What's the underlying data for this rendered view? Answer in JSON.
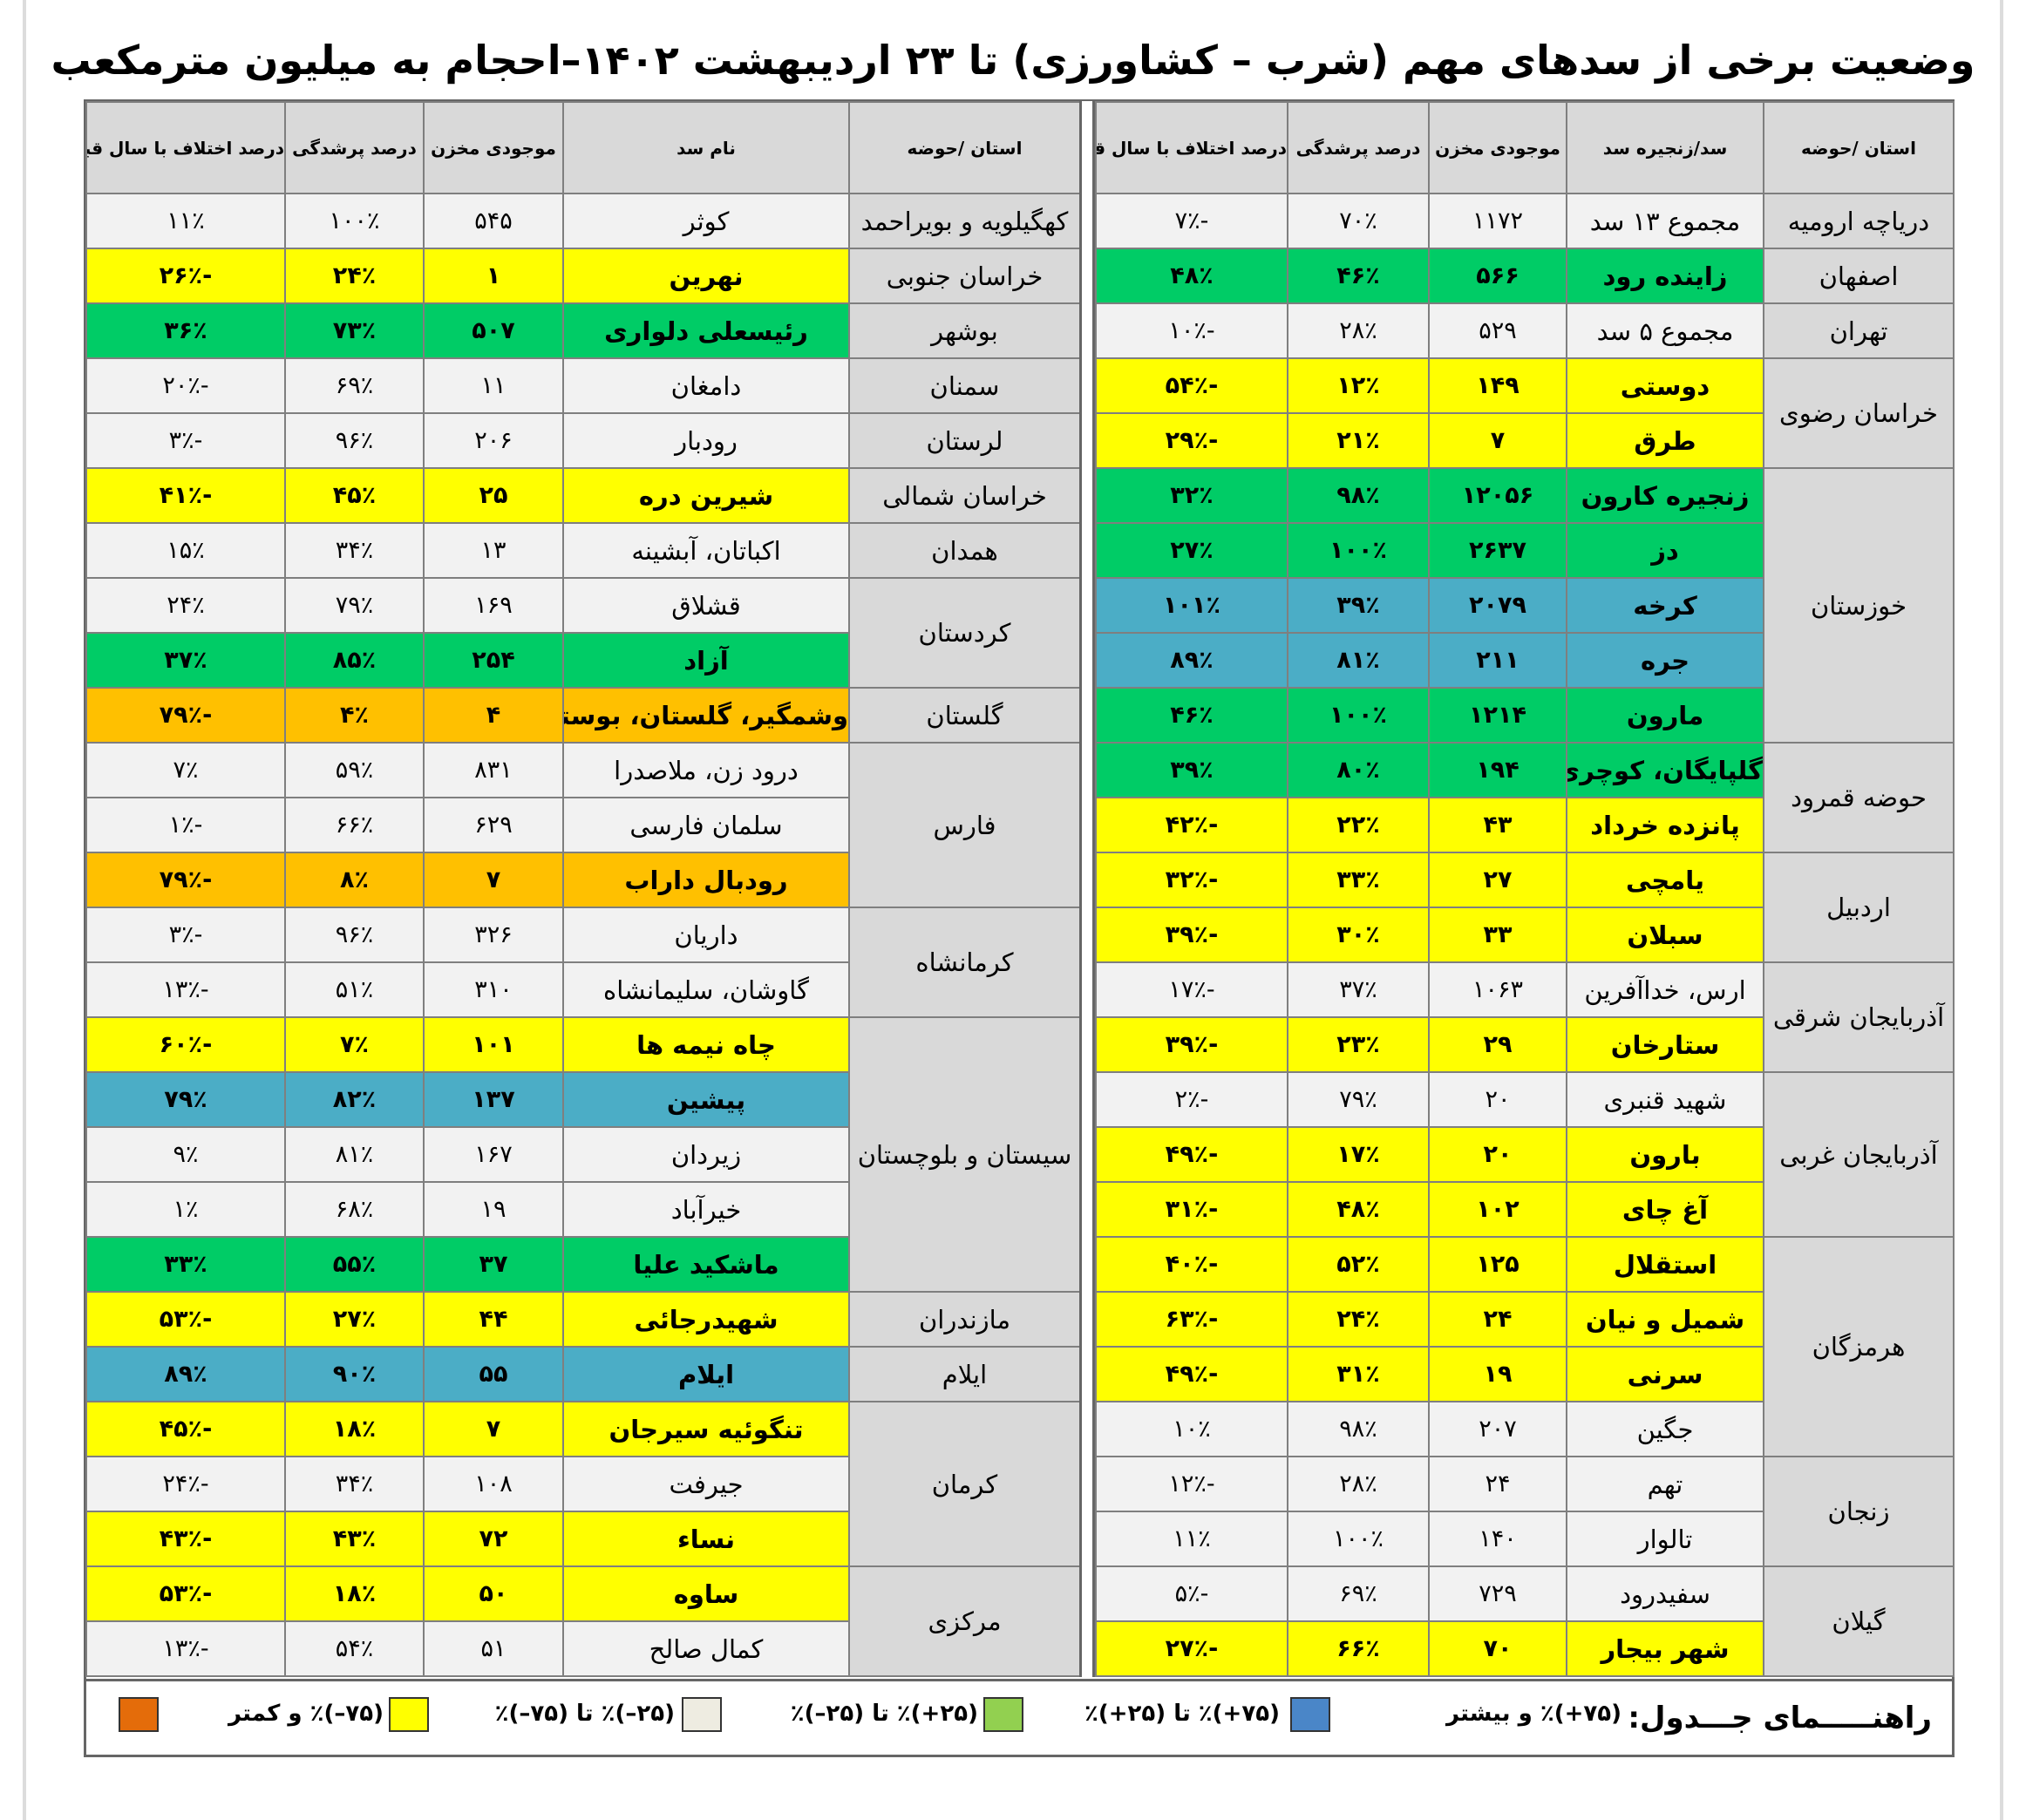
{
  "title": "وضعیت برخی از سدهای مهم (شرب – کشاورزی) تا ۲۳ اردیبهشت ۱۴۰۲–احجام به میلیون مترمکعب",
  "colors": {
    "gray": "#f2f2f2",
    "yellow": "#ffff00",
    "green": "#00cc66",
    "blue": "#4badc6",
    "orange": "#ffc000",
    "header": "#d9d9d9"
  },
  "right_table": {
    "headers": [
      "استان /حوضه",
      "سد/زنجیره سد",
      "موجودی مخزن",
      "درصد پرشدگی",
      "درصد اختلاف با سال قبل"
    ],
    "rows": [
      {
        "province": "دریاچه ارومیه",
        "span": 1,
        "dam": "مجموع ۱۳ سد",
        "storage": "۱۱۷۲",
        "fill": "۷۰٪",
        "diff": "-۷٪",
        "color": "gray"
      },
      {
        "province": "اصفهان",
        "span": 1,
        "dam": "زاینده رود",
        "storage": "۵۶۶",
        "fill": "۴۶٪",
        "diff": "۴۸٪",
        "color": "green"
      },
      {
        "province": "تهران",
        "span": 1,
        "dam": "مجموع ۵ سد",
        "storage": "۵۲۹",
        "fill": "۲۸٪",
        "diff": "-۱۰٪",
        "color": "gray"
      },
      {
        "province": "خراسان رضوی",
        "span": 2,
        "dam": "دوستی",
        "storage": "۱۴۹",
        "fill": "۱۲٪",
        "diff": "-۵۴٪",
        "color": "yellow"
      },
      {
        "province": null,
        "dam": "طرق",
        "storage": "۷",
        "fill": "۲۱٪",
        "diff": "-۲۹٪",
        "color": "yellow"
      },
      {
        "province": "خوزستان",
        "span": 5,
        "dam": "زنجیره کارون",
        "storage": "۱۲۰۵۶",
        "fill": "۹۸٪",
        "diff": "۳۲٪",
        "color": "green"
      },
      {
        "province": null,
        "dam": "دز",
        "storage": "۲۶۳۷",
        "fill": "۱۰۰٪",
        "diff": "۲۷٪",
        "color": "green"
      },
      {
        "province": null,
        "dam": "کرخه",
        "storage": "۲۰۷۹",
        "fill": "۳۹٪",
        "diff": "۱۰۱٪",
        "color": "blue"
      },
      {
        "province": null,
        "dam": "جره",
        "storage": "۲۱۱",
        "fill": "۸۱٪",
        "diff": "۸۹٪",
        "color": "blue"
      },
      {
        "province": null,
        "dam": "مارون",
        "storage": "۱۲۱۴",
        "fill": "۱۰۰٪",
        "diff": "۴۶٪",
        "color": "green"
      },
      {
        "province": "حوضه قمرود",
        "span": 2,
        "dam": "گلپایگان، کوچری",
        "storage": "۱۹۴",
        "fill": "۸۰٪",
        "diff": "۳۹٪",
        "color": "green"
      },
      {
        "province": null,
        "dam": "پانزده خرداد",
        "storage": "۴۳",
        "fill": "۲۲٪",
        "diff": "-۴۲٪",
        "color": "yellow"
      },
      {
        "province": "اردبیل",
        "span": 2,
        "dam": "یامچی",
        "storage": "۲۷",
        "fill": "۳۳٪",
        "diff": "-۳۲٪",
        "color": "yellow"
      },
      {
        "province": null,
        "dam": "سبلان",
        "storage": "۳۳",
        "fill": "۳۰٪",
        "diff": "-۳۹٪",
        "color": "yellow"
      },
      {
        "province": "آذربایجان شرقی",
        "span": 2,
        "dam": "ارس، خداآفرین",
        "storage": "۱۰۶۳",
        "fill": "۳۷٪",
        "diff": "-۱۷٪",
        "color": "gray"
      },
      {
        "province": null,
        "dam": "ستارخان",
        "storage": "۲۹",
        "fill": "۲۳٪",
        "diff": "-۳۹٪",
        "color": "yellow"
      },
      {
        "province": "آذربایجان غربی",
        "span": 3,
        "dam": "شهید قنبری",
        "storage": "۲۰",
        "fill": "۷۹٪",
        "diff": "-۲٪",
        "color": "gray"
      },
      {
        "province": null,
        "dam": "بارون",
        "storage": "۲۰",
        "fill": "۱۷٪",
        "diff": "-۴۹٪",
        "color": "yellow"
      },
      {
        "province": null,
        "dam": "آغ چای",
        "storage": "۱۰۲",
        "fill": "۴۸٪",
        "diff": "-۳۱٪",
        "color": "yellow"
      },
      {
        "province": "هرمزگان",
        "span": 4,
        "dam": "استقلال",
        "storage": "۱۲۵",
        "fill": "۵۲٪",
        "diff": "-۴۰٪",
        "color": "yellow"
      },
      {
        "province": null,
        "dam": "شمیل و نیان",
        "storage": "۲۴",
        "fill": "۲۴٪",
        "diff": "-۶۳٪",
        "color": "yellow"
      },
      {
        "province": null,
        "dam": "سرنی",
        "storage": "۱۹",
        "fill": "۳۱٪",
        "diff": "-۴۹٪",
        "color": "yellow"
      },
      {
        "province": null,
        "dam": "جگین",
        "storage": "۲۰۷",
        "fill": "۹۸٪",
        "diff": "۱۰٪",
        "color": "gray"
      },
      {
        "province": "زنجان",
        "span": 2,
        "dam": "تهم",
        "storage": "۲۴",
        "fill": "۲۸٪",
        "diff": "-۱۲٪",
        "color": "gray"
      },
      {
        "province": null,
        "dam": "تالوار",
        "storage": "۱۴۰",
        "fill": "۱۰۰٪",
        "diff": "۱۱٪",
        "color": "gray"
      },
      {
        "province": "گیلان",
        "span": 2,
        "dam": "سفیدرود",
        "storage": "۷۲۹",
        "fill": "۶۹٪",
        "diff": "-۵٪",
        "color": "gray"
      },
      {
        "province": null,
        "dam": "شهر بیجار",
        "storage": "۷۰",
        "fill": "۶۶٪",
        "diff": "-۲۷٪",
        "color": "yellow"
      }
    ]
  },
  "left_table": {
    "headers": [
      "استان /حوضه",
      "نام سد",
      "موجودی مخزن",
      "درصد پرشدگی",
      "درصد اختلاف با سال قبل"
    ],
    "rows": [
      {
        "province": "کهگیلویه و بویراحمد",
        "span": 1,
        "dam": "کوثر",
        "storage": "۵۴۵",
        "fill": "۱۰۰٪",
        "diff": "۱۱٪",
        "color": "gray"
      },
      {
        "province": "خراسان جنوبی",
        "span": 1,
        "dam": "نهرین",
        "storage": "۱",
        "fill": "۲۴٪",
        "diff": "-۲۶٪",
        "color": "yellow"
      },
      {
        "province": "بوشهر",
        "span": 1,
        "dam": "رئیسعلی دلواری",
        "storage": "۵۰۷",
        "fill": "۷۳٪",
        "diff": "۳۶٪",
        "color": "green"
      },
      {
        "province": "سمنان",
        "span": 1,
        "dam": "دامغان",
        "storage": "۱۱",
        "fill": "۶۹٪",
        "diff": "-۲۰٪",
        "color": "gray"
      },
      {
        "province": "لرستان",
        "span": 1,
        "dam": "رودبار",
        "storage": "۲۰۶",
        "fill": "۹۶٪",
        "diff": "-۳٪",
        "color": "gray"
      },
      {
        "province": "خراسان شمالی",
        "span": 1,
        "dam": "شیرین دره",
        "storage": "۲۵",
        "fill": "۴۵٪",
        "diff": "-۴۱٪",
        "color": "yellow"
      },
      {
        "province": "همدان",
        "span": 1,
        "dam": "اکباتان، آبشینه",
        "storage": "۱۳",
        "fill": "۳۴٪",
        "diff": "۱۵٪",
        "color": "gray"
      },
      {
        "province": "کردستان",
        "span": 2,
        "dam": "قشلاق",
        "storage": "۱۶۹",
        "fill": "۷۹٪",
        "diff": "۲۴٪",
        "color": "gray"
      },
      {
        "province": null,
        "dam": "آزاد",
        "storage": "۲۵۴",
        "fill": "۸۵٪",
        "diff": "۳۷٪",
        "color": "green"
      },
      {
        "province": "گلستان",
        "span": 1,
        "dam": "وشمگیر، گلستان، بوستان",
        "storage": "۴",
        "fill": "۴٪",
        "diff": "-۷۹٪",
        "color": "orange"
      },
      {
        "province": "فارس",
        "span": 3,
        "dam": "درود زن، ملاصدرا",
        "storage": "۸۳۱",
        "fill": "۵۹٪",
        "diff": "۷٪",
        "color": "gray"
      },
      {
        "province": null,
        "dam": "سلمان فارسی",
        "storage": "۶۲۹",
        "fill": "۶۶٪",
        "diff": "-۱٪",
        "color": "gray"
      },
      {
        "province": null,
        "dam": "رودبال داراب",
        "storage": "۷",
        "fill": "۸٪",
        "diff": "-۷۹٪",
        "color": "orange"
      },
      {
        "province": "کرمانشاه",
        "span": 2,
        "dam": "داریان",
        "storage": "۳۲۶",
        "fill": "۹۶٪",
        "diff": "-۳٪",
        "color": "gray"
      },
      {
        "province": null,
        "dam": "گاوشان، سلیمانشاه",
        "storage": "۳۱۰",
        "fill": "۵۱٪",
        "diff": "-۱۳٪",
        "color": "gray"
      },
      {
        "province": "سیستان و بلوچستان",
        "span": 5,
        "dam": "چاه نیمه ها",
        "storage": "۱۰۱",
        "fill": "۷٪",
        "diff": "-۶۰٪",
        "color": "yellow"
      },
      {
        "province": null,
        "dam": "پیشین",
        "storage": "۱۳۷",
        "fill": "۸۲٪",
        "diff": "۷۹٪",
        "color": "blue"
      },
      {
        "province": null,
        "dam": "زیردان",
        "storage": "۱۶۷",
        "fill": "۸۱٪",
        "diff": "۹٪",
        "color": "gray"
      },
      {
        "province": null,
        "dam": "خیرآباد",
        "storage": "۱۹",
        "fill": "۶۸٪",
        "diff": "۱٪",
        "color": "gray"
      },
      {
        "province": null,
        "dam": "ماشکید علیا",
        "storage": "۳۷",
        "fill": "۵۵٪",
        "diff": "۳۳٪",
        "color": "green"
      },
      {
        "province": "مازندران",
        "span": 1,
        "dam": "شهیدرجائی",
        "storage": "۴۴",
        "fill": "۲۷٪",
        "diff": "-۵۳٪",
        "color": "yellow"
      },
      {
        "province": "ایلام",
        "span": 1,
        "dam": "ایلام",
        "storage": "۵۵",
        "fill": "۹۰٪",
        "diff": "۸۹٪",
        "color": "blue"
      },
      {
        "province": "کرمان",
        "span": 3,
        "dam": "تنگوئیه سیرجان",
        "storage": "۷",
        "fill": "۱۸٪",
        "diff": "-۴۵٪",
        "color": "yellow"
      },
      {
        "province": null,
        "dam": "جیرفت",
        "storage": "۱۰۸",
        "fill": "۳۴٪",
        "diff": "-۲۴٪",
        "color": "gray"
      },
      {
        "province": null,
        "dam": "نساء",
        "storage": "۷۲",
        "fill": "۴۳٪",
        "diff": "-۴۳٪",
        "color": "yellow"
      },
      {
        "province": "مرکزی",
        "span": 2,
        "dam": "ساوه",
        "storage": "۵۰",
        "fill": "۱۸٪",
        "diff": "-۵۳٪",
        "color": "yellow"
      },
      {
        "province": null,
        "dam": "کمال صالح",
        "storage": "۵۱",
        "fill": "۵۴٪",
        "diff": "-۱۳٪",
        "color": "gray"
      }
    ]
  },
  "legend": {
    "title": "راهنـــــمای جـــدول:",
    "items": [
      {
        "label": "(۷۵+)٪ و بیشتر",
        "color": "#4a86c8"
      },
      {
        "label": "(۷۵+)٪ تا (۲۵+)٪",
        "color": "#92d050"
      },
      {
        "label": "(۲۵+)٪ تا (۲۵–)٪",
        "color": "#eeece1"
      },
      {
        "label": "(۲۵–)٪ تا (۷۵–)٪",
        "color": "#ffff00"
      },
      {
        "label": "(۷۵–)٪ و کمتر",
        "color": "#e46c0a"
      }
    ]
  }
}
